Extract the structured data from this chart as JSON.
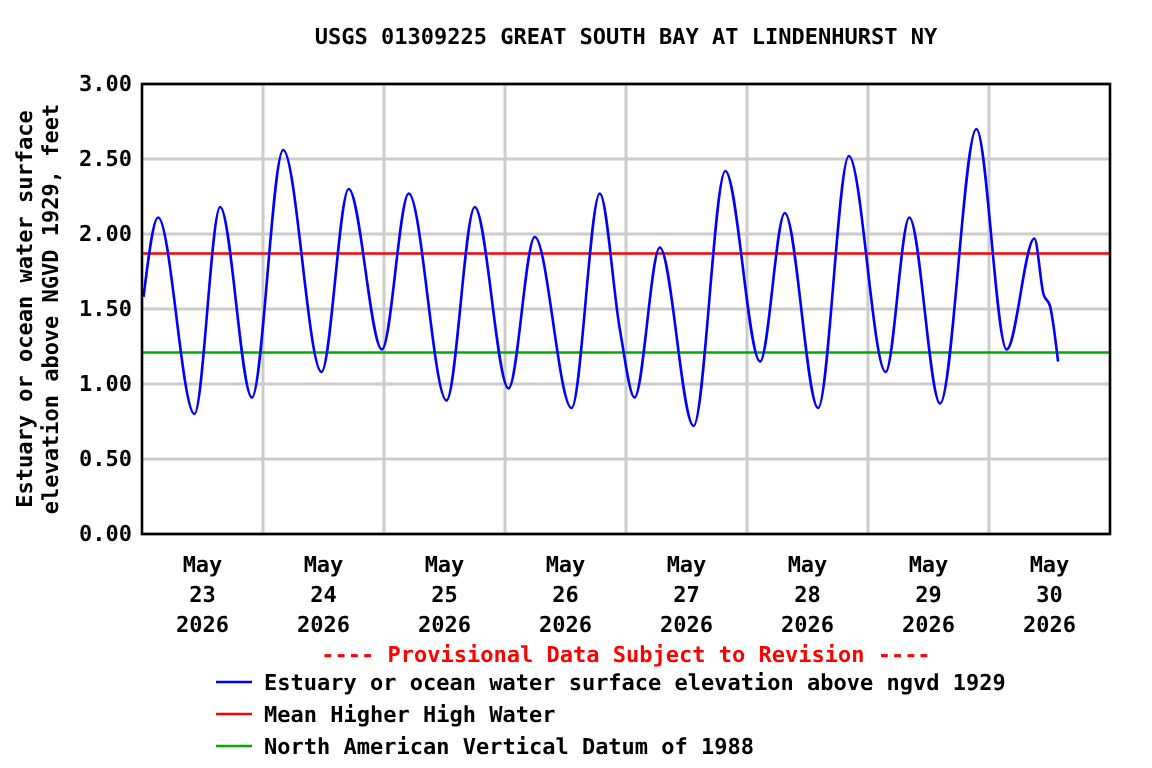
{
  "chart_data": {
    "type": "line",
    "title": "USGS 01309225 GREAT SOUTH BAY AT LINDENHURST NY",
    "ylabel": "Estuary or ocean water surface elevation above NGVD 1929, feet",
    "annotations": [
      "---- Provisional Data Subject to Revision ----"
    ],
    "x": [
      "2026-05-23T00:18",
      "2026-05-23T03:12",
      "2026-05-23T10:24",
      "2026-05-23T15:30",
      "2026-05-23T21:48",
      "2026-05-24T04:00",
      "2026-05-24T11:36",
      "2026-05-24T17:00",
      "2026-05-24T23:36",
      "2026-05-25T04:54",
      "2026-05-25T12:24",
      "2026-05-25T18:00",
      "2026-05-26T00:42",
      "2026-05-26T05:54",
      "2026-05-26T13:12",
      "2026-05-26T18:48",
      "2026-05-26T22:48",
      "2026-05-27T01:42",
      "2026-05-27T06:42",
      "2026-05-27T13:24",
      "2026-05-27T19:42",
      "2026-05-28T02:36",
      "2026-05-28T07:30",
      "2026-05-28T14:06",
      "2026-05-28T20:12",
      "2026-05-29T03:30",
      "2026-05-29T08:12",
      "2026-05-29T14:18",
      "2026-05-29T21:30",
      "2026-05-30T03:30",
      "2026-05-30T09:00",
      "2026-05-30T10:48",
      "2026-05-30T12:06",
      "2026-05-30T13:42"
    ],
    "series": [
      {
        "name": "Estuary or ocean water surface elevation above ngvd 1929",
        "color": "#0000ff",
        "values": [
          1.58,
          2.11,
          0.8,
          2.18,
          0.91,
          2.56,
          1.08,
          2.3,
          1.23,
          2.27,
          0.89,
          2.18,
          0.97,
          1.98,
          0.84,
          2.27,
          1.36,
          0.91,
          1.91,
          0.72,
          2.42,
          1.15,
          2.14,
          0.84,
          2.52,
          1.08,
          2.11,
          0.87,
          2.7,
          1.23,
          1.97,
          1.6,
          1.52,
          1.15
        ]
      }
    ],
    "ref_lines": [
      {
        "axis": "y",
        "value": 1.87,
        "label": "Mean Higher High Water",
        "color": "#ff0000"
      },
      {
        "axis": "y",
        "value": 1.21,
        "label": "North American Vertical Datum of 1988",
        "color": "#00aa00"
      }
    ],
    "xlim": [
      "2026-05-23T00:00",
      "2026-05-31T00:00"
    ],
    "xticks": [
      {
        "value": "2026-05-24T00:00",
        "label": null
      },
      {
        "value": "2026-05-25T00:00",
        "label": null
      },
      {
        "value": "2026-05-26T00:00",
        "label": null
      },
      {
        "value": "2026-05-27T00:00",
        "label": null
      },
      {
        "value": "2026-05-28T00:00",
        "label": null
      },
      {
        "value": "2026-05-29T00:00",
        "label": null
      },
      {
        "value": "2026-05-30T00:00",
        "label": null
      },
      {
        "value": "2026-05-23T12:00",
        "label": "May\n23\n2026"
      },
      {
        "value": "2026-05-24T12:00",
        "label": "May\n24\n2026"
      },
      {
        "value": "2026-05-25T12:00",
        "label": "May\n25\n2026"
      },
      {
        "value": "2026-05-26T12:00",
        "label": "May\n26\n2026"
      },
      {
        "value": "2026-05-27T12:00",
        "label": "May\n27\n2026"
      },
      {
        "value": "2026-05-28T12:00",
        "label": "May\n28\n2026"
      },
      {
        "value": "2026-05-29T12:00",
        "label": "May\n29\n2026"
      },
      {
        "value": "2026-05-30T12:00",
        "label": "May\n30\n2026"
      }
    ],
    "ylim": [
      0,
      3
    ],
    "yticks": [
      {
        "value": 0,
        "label": "0.00"
      },
      {
        "value": 0.5,
        "label": "0.50"
      },
      {
        "value": 1,
        "label": "1.00"
      },
      {
        "value": 1.5,
        "label": "1.50"
      },
      {
        "value": 2,
        "label": "2.00"
      },
      {
        "value": 2.5,
        "label": "2.50"
      },
      {
        "value": 3,
        "label": "3.00"
      }
    ],
    "grid": true,
    "legend": "bottom",
    "marker": "none",
    "line_style": "solid"
  }
}
